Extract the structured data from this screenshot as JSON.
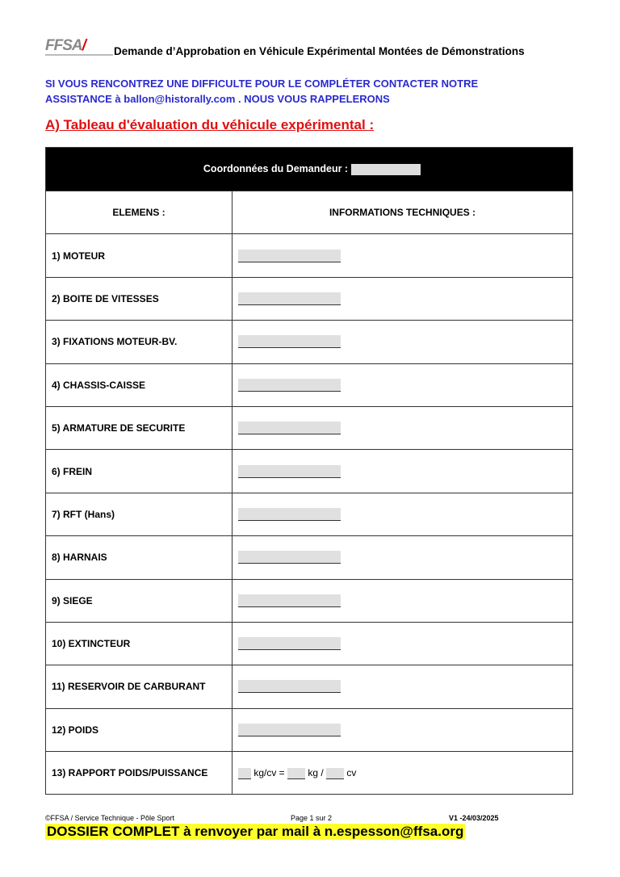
{
  "header": {
    "logo": "FFSA",
    "title": "Demande d’Approbation en Véhicule Expérimental Montées de Démonstrations"
  },
  "notice": {
    "line1": "SI VOUS RENCONTREZ UNE DIFFICULTE POUR LE COMPLÉTER CONTACTER NOTRE",
    "line2": "ASSISTANCE à ballon@historally.com . NOUS VOUS RAPPELERONS"
  },
  "section_title": "A) Tableau d'évaluation du véhicule expérimental :",
  "table": {
    "banner": "Coordonnées du Demandeur :",
    "col1": "ELEMENS :",
    "col2": "INFORMATIONS TECHNIQUES :",
    "rows": [
      "1) MOTEUR",
      "2) BOITE DE VITESSES",
      "3) FIXATIONS MOTEUR-BV.",
      "4) CHASSIS-CAISSE",
      "5) ARMATURE DE SECURITE",
      "6) FREIN",
      "7) RFT (Hans)",
      "8) HARNAIS",
      "9) SIEGE",
      "10) EXTINCTEUR",
      "11) RESERVOIR DE CARBURANT",
      "12) POIDS"
    ],
    "last_row": {
      "label": "13) RAPPORT POIDS/PUISSANCE",
      "u1": "kg/cv =",
      "u2": "kg /",
      "u3": "cv"
    }
  },
  "footer": {
    "left": "©FFSA / Service Technique - Pôle Sport",
    "page": "Page 1 sur 2",
    "version": "V1 -24/03/2025",
    "banner": "DOSSIER COMPLET à renvoyer par mail à n.espesson@ffsa.org"
  }
}
